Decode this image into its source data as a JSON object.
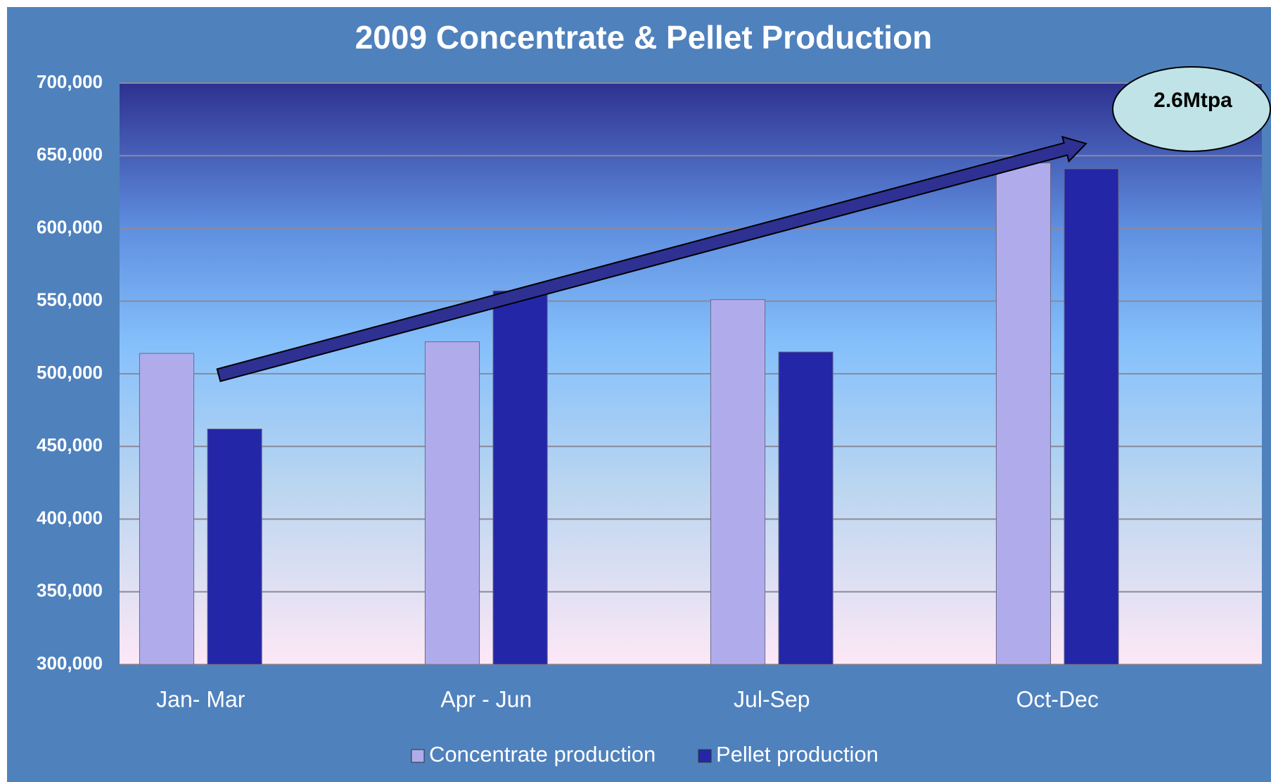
{
  "chart_data": {
    "type": "bar",
    "title": "2009 Concentrate & Pellet Production",
    "categories": [
      "Jan- Mar",
      "Apr - Jun",
      "Jul-Sep",
      "Oct-Dec"
    ],
    "series": [
      {
        "name": "Concentrate production",
        "color": "#b0acec",
        "values": [
          514000,
          522000,
          551000,
          645000
        ]
      },
      {
        "name": "Pellet production",
        "color": "#2426a8",
        "values": [
          462000,
          557000,
          515000,
          641000
        ]
      }
    ],
    "ylim": [
      300000,
      700000
    ],
    "yticks": [
      {
        "value": 300000,
        "label": "300,000"
      },
      {
        "value": 350000,
        "label": "350,000"
      },
      {
        "value": 400000,
        "label": "400,000"
      },
      {
        "value": 450000,
        "label": "450,000"
      },
      {
        "value": 500000,
        "label": "500,000"
      },
      {
        "value": 550000,
        "label": "550,000"
      },
      {
        "value": 600000,
        "label": "600,000"
      },
      {
        "value": 650000,
        "label": "650,000"
      },
      {
        "value": 700000,
        "label": "700,000"
      }
    ],
    "grid": true,
    "legend": "bottom",
    "annotation": "2.6Mtpa"
  }
}
